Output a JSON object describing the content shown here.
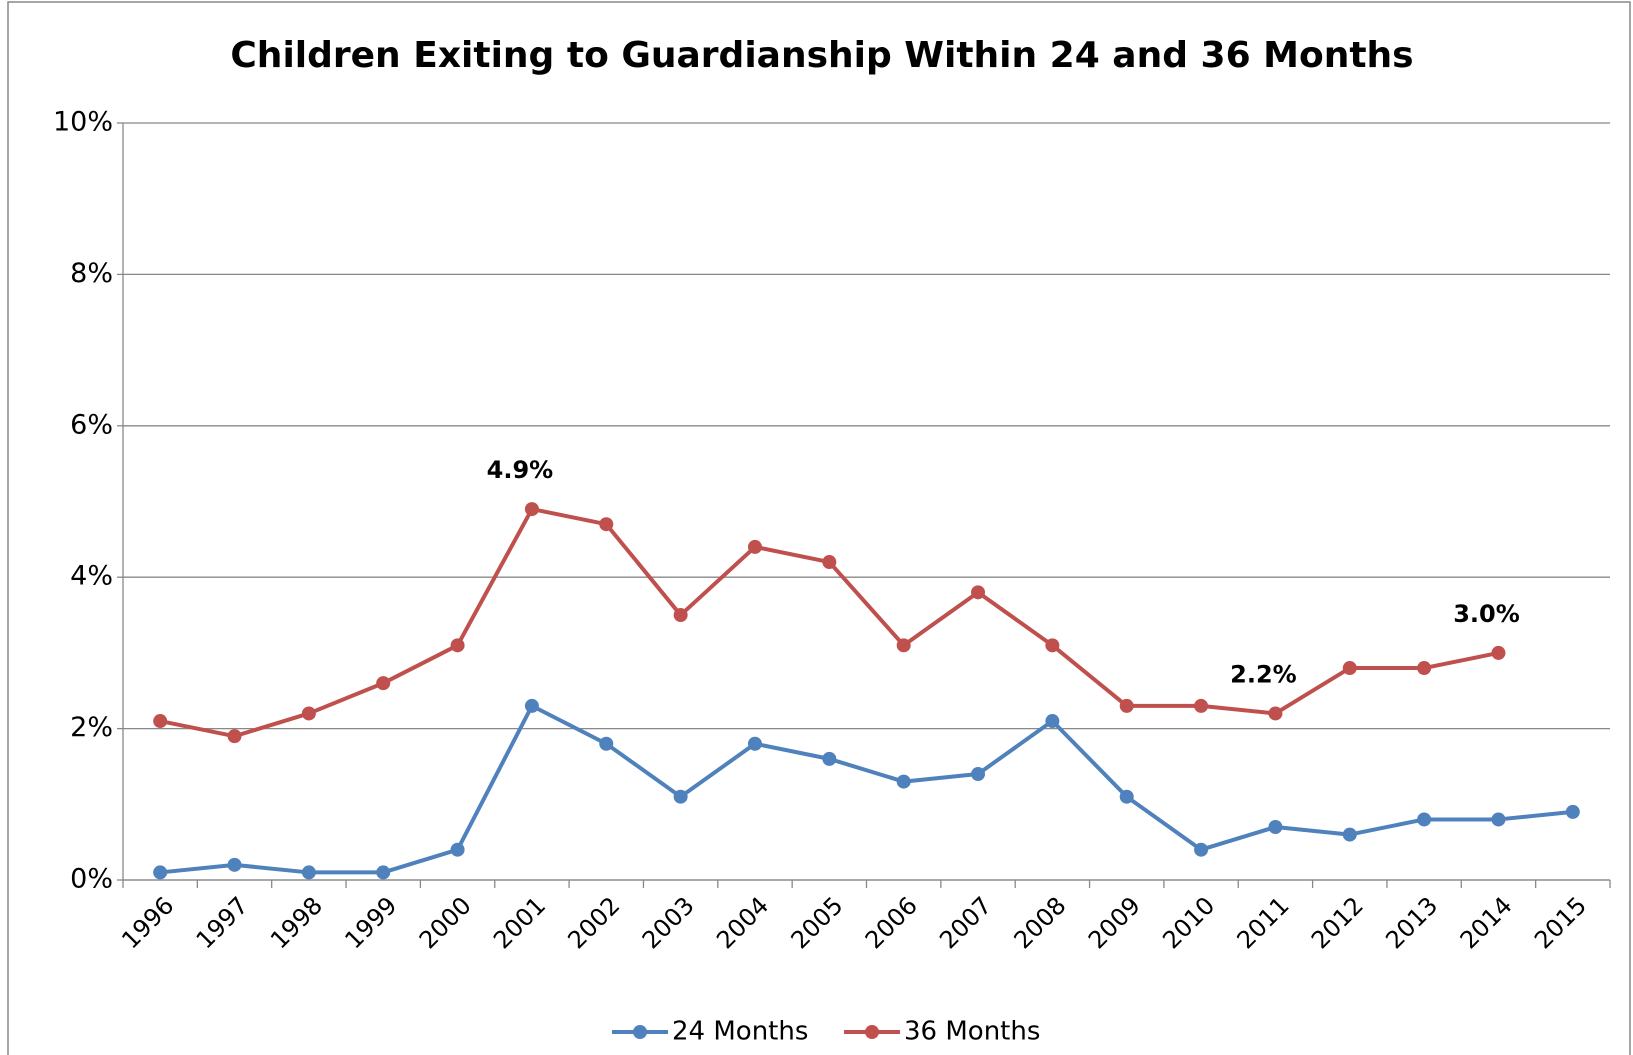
{
  "chart_data": {
    "type": "line",
    "title": "Children Exiting to Guardianship Within 24 and 36 Months",
    "categories": [
      "1996",
      "1997",
      "1998",
      "1999",
      "2000",
      "2001",
      "2002",
      "2003",
      "2004",
      "2005",
      "2006",
      "2007",
      "2008",
      "2009",
      "2010",
      "2011",
      "2012",
      "2013",
      "2014",
      "2015"
    ],
    "series": [
      {
        "name": "24 Months",
        "color": "#4f81bd",
        "values": [
          0.1,
          0.2,
          0.1,
          0.1,
          0.4,
          2.3,
          1.8,
          1.1,
          1.8,
          1.6,
          1.3,
          1.4,
          2.1,
          1.1,
          0.4,
          0.7,
          0.6,
          0.8,
          0.8,
          0.9
        ]
      },
      {
        "name": "36 Months",
        "color": "#c0504d",
        "values": [
          2.1,
          1.9,
          2.2,
          2.6,
          3.1,
          4.9,
          4.7,
          3.5,
          4.4,
          4.2,
          3.1,
          3.8,
          3.1,
          2.3,
          2.3,
          2.2,
          2.8,
          2.8,
          3.0,
          null
        ],
        "value_labels": [
          null,
          null,
          null,
          null,
          null,
          "4.9%",
          null,
          null,
          null,
          null,
          null,
          null,
          null,
          null,
          null,
          "2.2%",
          null,
          null,
          "3.0%",
          null
        ]
      }
    ],
    "ylim": [
      0,
      10
    ],
    "yticks": [
      {
        "value": 0,
        "label": "0%"
      },
      {
        "value": 2,
        "label": "2%"
      },
      {
        "value": 4,
        "label": "4%"
      },
      {
        "value": 6,
        "label": "6%"
      },
      {
        "value": 8,
        "label": "8%"
      },
      {
        "value": 10,
        "label": "10%"
      }
    ],
    "grid": true,
    "legend": "bottom"
  }
}
